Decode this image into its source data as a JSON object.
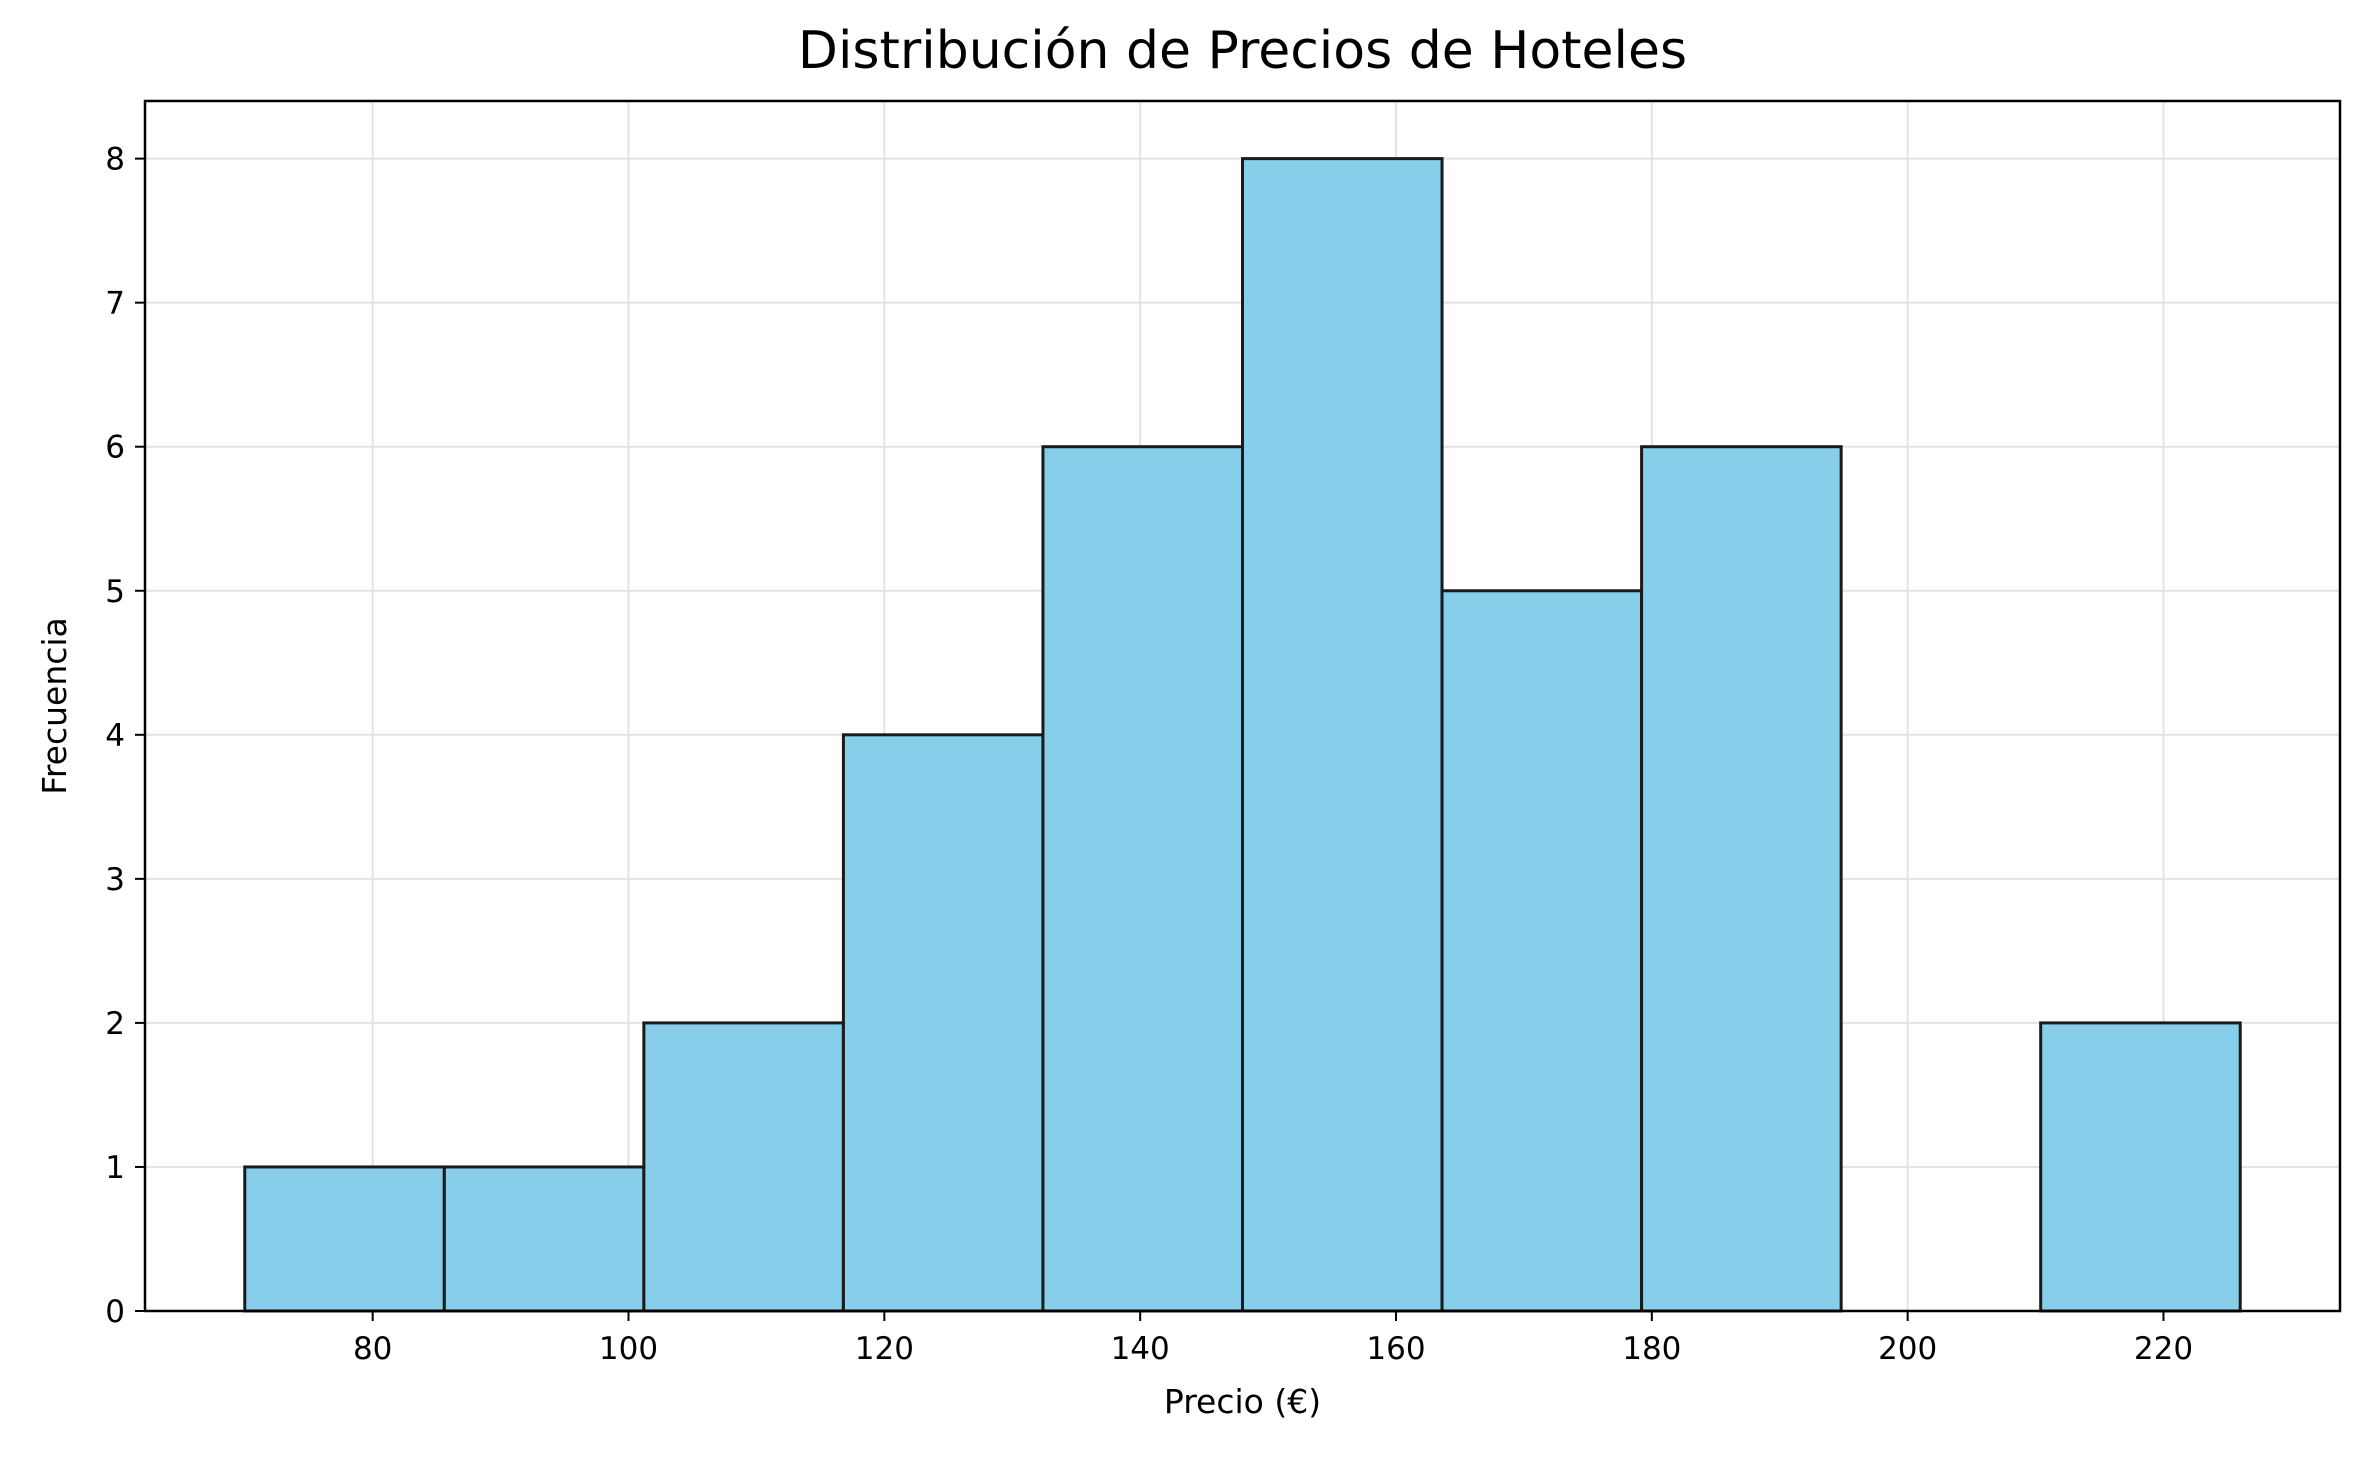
{
  "chart_data": {
    "type": "histogram",
    "title": "Distribución de Precios de Hoteles",
    "xlabel": "Precio (€)",
    "ylabel": "Frecuencia",
    "bin_edges": [
      70.0,
      85.6,
      101.2,
      116.8,
      132.4,
      148.0,
      163.6,
      179.2,
      194.8,
      210.4,
      226.0
    ],
    "counts": [
      1,
      1,
      2,
      4,
      6,
      8,
      5,
      6,
      0,
      2
    ],
    "xlim": [
      62.2,
      233.8
    ],
    "ylim": [
      0,
      8.4
    ],
    "xticks": [
      80,
      100,
      120,
      140,
      160,
      180,
      200,
      220
    ],
    "yticks": [
      0,
      1,
      2,
      3,
      4,
      5,
      6,
      7,
      8
    ],
    "bar_color": "#87CEEB",
    "edge_color": "#1a1a1a",
    "grid": true
  }
}
